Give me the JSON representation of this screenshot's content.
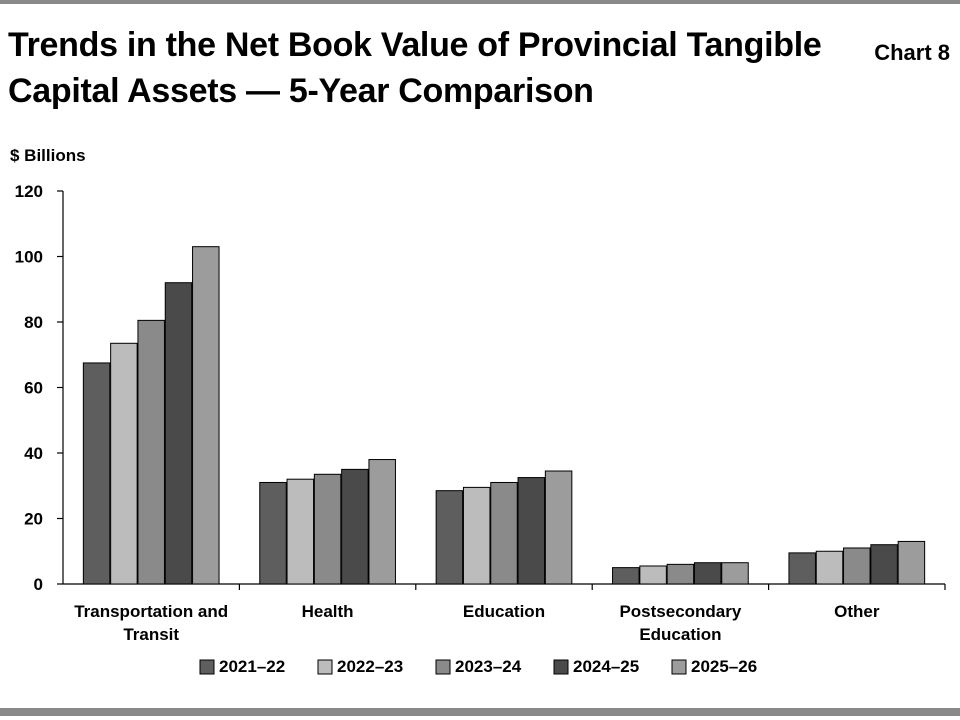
{
  "header": {
    "title": "Trends in the Net Book Value of Provincial Tangible Capital Assets — 5-Year Comparison",
    "chart_number": "Chart 8"
  },
  "colors": {
    "2021–22": "#5e5e5e",
    "2022–23": "#bcbcbc",
    "2023–24": "#8a8a8a",
    "2024–25": "#4a4a4a",
    "2025–26": "#9c9c9c",
    "rule": "#8a8a8a"
  },
  "chart_data": {
    "type": "bar",
    "title": "Trends in the Net Book Value of Provincial Tangible Capital Assets — 5-Year Comparison",
    "ylabel": "$ Billions",
    "xlabel": "",
    "ylim": [
      0,
      120
    ],
    "yticks": [
      0,
      20,
      40,
      60,
      80,
      100,
      120
    ],
    "grid": false,
    "legend_position": "bottom",
    "categories": [
      [
        "Transportation and",
        "Transit"
      ],
      [
        "Health"
      ],
      [
        "Education"
      ],
      [
        "Postsecondary",
        "Education"
      ],
      [
        "Other"
      ]
    ],
    "series": [
      {
        "name": "2021–22",
        "values": [
          67.5,
          31,
          28.5,
          5,
          9.5
        ]
      },
      {
        "name": "2022–23",
        "values": [
          73.5,
          32,
          29.5,
          5.5,
          10
        ]
      },
      {
        "name": "2023–24",
        "values": [
          80.5,
          33.5,
          31,
          6,
          11
        ]
      },
      {
        "name": "2024–25",
        "values": [
          92,
          35,
          32.5,
          6.5,
          12
        ]
      },
      {
        "name": "2025–26",
        "values": [
          103,
          38,
          34.5,
          6.5,
          13
        ]
      }
    ]
  }
}
